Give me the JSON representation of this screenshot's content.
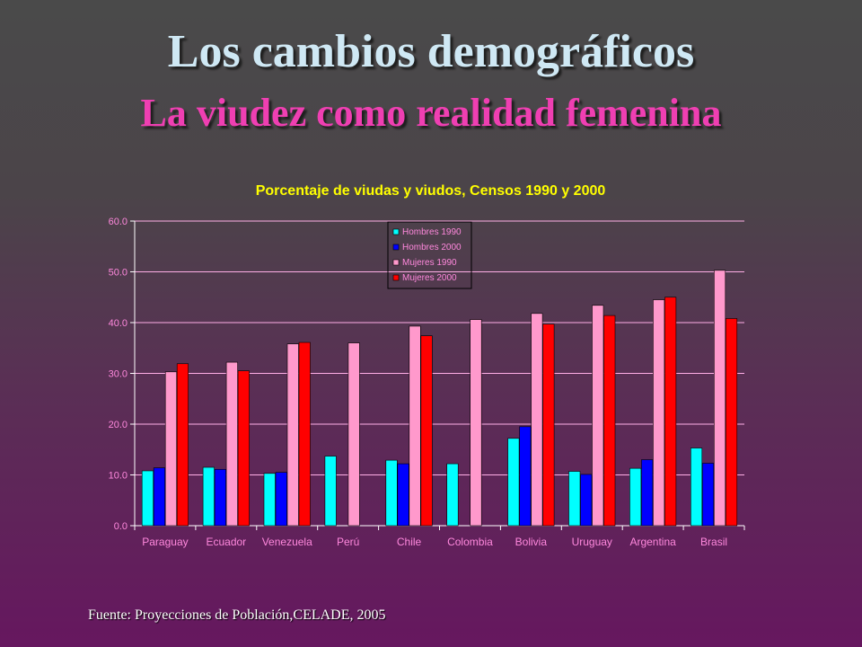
{
  "slide": {
    "title": "Los cambios demográficos",
    "subtitle": "La viudez como realidad femenina",
    "source": "Fuente: Proyecciones de Población,CELADE, 2005"
  },
  "colors": {
    "title": "#cfe8f4",
    "subtitle": "#ef3fb2",
    "chart_title": "#ffff00",
    "tick_text": "#ff88dd",
    "axis": "#ffffff",
    "grid": "#ffaee6"
  },
  "chart_data": {
    "type": "bar",
    "title": "Porcentaje de viudas y viudos, Censos 1990 y 2000",
    "xlabel": "",
    "ylabel": "",
    "ylim": [
      0,
      60
    ],
    "yticks": [
      "0.0",
      "10.0",
      "20.0",
      "30.0",
      "40.0",
      "50.0",
      "60.0"
    ],
    "grid": true,
    "legend_position": "top-center",
    "categories": [
      "Paraguay",
      "Ecuador",
      "Venezuela",
      "Perú",
      "Chile",
      "Colombia",
      "Bolivia",
      "Uruguay",
      "Argentina",
      "Brasil"
    ],
    "series": [
      {
        "name": "Hombres 1990",
        "color": "#00ffff",
        "values": [
          10.8,
          11.5,
          10.3,
          13.7,
          12.9,
          12.2,
          17.2,
          10.7,
          11.3,
          15.3
        ]
      },
      {
        "name": "Hombres 2000",
        "color": "#0000ff",
        "values": [
          11.4,
          11.1,
          10.5,
          null,
          12.2,
          null,
          19.5,
          10.1,
          13.0,
          12.3
        ]
      },
      {
        "name": "Mujeres 1990",
        "color": "#ff99cc",
        "values": [
          30.3,
          32.2,
          35.8,
          36.0,
          39.3,
          40.6,
          41.8,
          43.4,
          44.5,
          50.3
        ]
      },
      {
        "name": "Mujeres 2000",
        "color": "#ff0000",
        "values": [
          31.9,
          30.5,
          36.1,
          null,
          37.4,
          null,
          39.7,
          41.4,
          45.0,
          40.8
        ]
      }
    ]
  }
}
